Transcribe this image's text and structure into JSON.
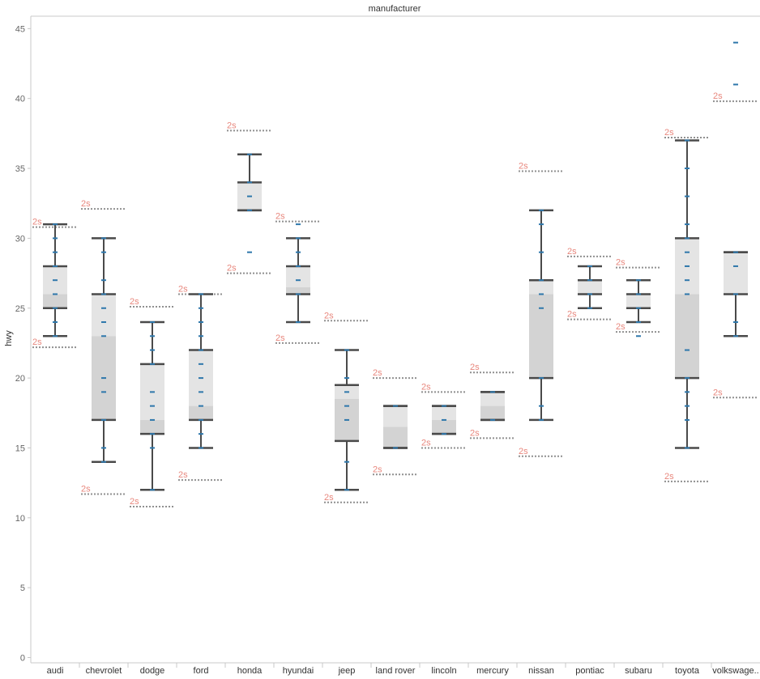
{
  "colors": {
    "whisker": "#4a4a4a",
    "box_upper": "#e4e4e4",
    "box_lower": "#d3d3d3",
    "point": "#2e77ab",
    "ref_line": "#909090",
    "ref_label": "#e8877d",
    "axis": "#c8c8c8"
  },
  "chart_data": {
    "type": "box",
    "title": "manufacturer",
    "ylabel": "hwy",
    "ylim": [
      0,
      46
    ],
    "yticks": [
      0,
      5,
      10,
      15,
      20,
      25,
      30,
      35,
      40,
      45
    ],
    "grid": false,
    "categories": [
      "audi",
      "chevrolet",
      "dodge",
      "ford",
      "honda",
      "hyundai",
      "jeep",
      "land rover",
      "lincoln",
      "mercury",
      "nissan",
      "pontiac",
      "subaru",
      "toyota",
      "volkswage.."
    ],
    "boxes": [
      {
        "min": 23,
        "q1": 25,
        "median": 26,
        "q3": 28,
        "max": 31,
        "points": [
          23,
          24,
          25,
          26,
          27,
          28,
          29,
          30,
          31
        ],
        "ref_upper": 30.8,
        "ref_lower": 22.2
      },
      {
        "min": 14,
        "q1": 17,
        "median": 23,
        "q3": 26,
        "max": 30,
        "points": [
          14,
          15,
          17,
          19,
          20,
          23,
          24,
          25,
          26,
          27,
          29,
          30
        ],
        "ref_upper": 32.1,
        "ref_lower": 11.7
      },
      {
        "min": 12,
        "q1": 16,
        "median": 17,
        "q3": 21,
        "max": 24,
        "points": [
          12,
          15,
          16,
          17,
          18,
          19,
          21,
          22,
          23,
          24
        ],
        "ref_upper": 25.1,
        "ref_lower": 10.8
      },
      {
        "min": 15,
        "q1": 17,
        "median": 18,
        "q3": 22,
        "max": 26,
        "points": [
          15,
          16,
          17,
          18,
          19,
          20,
          21,
          22,
          23,
          24,
          25,
          26
        ],
        "ref_upper": 26.0,
        "ref_lower": 12.7
      },
      {
        "min": 32,
        "q1": 32,
        "median": 32,
        "q3": 34,
        "max": 36,
        "points": [
          29,
          32,
          33,
          34,
          36
        ],
        "ref_upper": 37.7,
        "ref_lower": 27.5
      },
      {
        "min": 24,
        "q1": 26,
        "median": 26.5,
        "q3": 28,
        "max": 30,
        "points": [
          24,
          26,
          27,
          28,
          29,
          30,
          31
        ],
        "ref_upper": 31.2,
        "ref_lower": 22.5
      },
      {
        "min": 12,
        "q1": 15.5,
        "median": 18.5,
        "q3": 19.5,
        "max": 22,
        "points": [
          12,
          14,
          17,
          18,
          19,
          20,
          22
        ],
        "ref_upper": 24.1,
        "ref_lower": 11.1
      },
      {
        "min": 15,
        "q1": 15,
        "median": 16.5,
        "q3": 18,
        "max": 18,
        "points": [
          15,
          18
        ],
        "ref_upper": 20.0,
        "ref_lower": 13.1
      },
      {
        "min": 16,
        "q1": 16,
        "median": 17,
        "q3": 18,
        "max": 18,
        "points": [
          16,
          17,
          18
        ],
        "ref_upper": 19.0,
        "ref_lower": 15.0
      },
      {
        "min": 17,
        "q1": 17,
        "median": 18,
        "q3": 19,
        "max": 19,
        "points": [
          17,
          19
        ],
        "ref_upper": 20.4,
        "ref_lower": 15.7
      },
      {
        "min": 17,
        "q1": 20,
        "median": 26,
        "q3": 27,
        "max": 32,
        "points": [
          17,
          18,
          20,
          25,
          26,
          27,
          29,
          31,
          32
        ],
        "ref_upper": 34.8,
        "ref_lower": 14.4
      },
      {
        "min": 25,
        "q1": 26,
        "median": 26,
        "q3": 27,
        "max": 28,
        "points": [
          25,
          26,
          27,
          28
        ],
        "ref_upper": 28.7,
        "ref_lower": 24.2
      },
      {
        "min": 24,
        "q1": 25,
        "median": 25,
        "q3": 26,
        "max": 27,
        "points": [
          23,
          24,
          25,
          26,
          27
        ],
        "ref_upper": 27.9,
        "ref_lower": 23.3
      },
      {
        "min": 15,
        "q1": 20,
        "median": 26,
        "q3": 30,
        "max": 37,
        "points": [
          15,
          17,
          18,
          19,
          20,
          22,
          26,
          27,
          28,
          29,
          30,
          31,
          33,
          35,
          37
        ],
        "ref_upper": 37.2,
        "ref_lower": 12.6
      },
      {
        "min": 23,
        "q1": 26,
        "median": 26,
        "q3": 29,
        "max": 29,
        "points": [
          23,
          24,
          26,
          28,
          29,
          41,
          44
        ],
        "ref_upper": 39.8,
        "ref_lower": 18.6
      }
    ],
    "reference_label": "2s"
  }
}
